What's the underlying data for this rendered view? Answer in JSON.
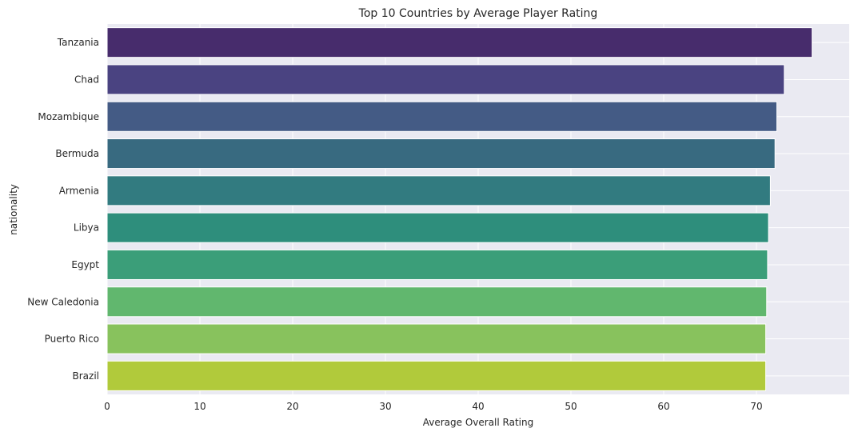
{
  "chart_data": {
    "type": "bar",
    "orientation": "horizontal",
    "title": "Top 10 Countries by Average Player Rating",
    "xlabel": "Average Overall Rating",
    "ylabel": "nationality",
    "xlim": [
      0,
      80
    ],
    "xticks": [
      0,
      10,
      20,
      30,
      40,
      50,
      60,
      70
    ],
    "grid": true,
    "categories": [
      "Tanzania",
      "Chad",
      "Mozambique",
      "Bermuda",
      "Armenia",
      "Libya",
      "Egypt",
      "New Caledonia",
      "Puerto Rico",
      "Brazil"
    ],
    "values": [
      76,
      73,
      72.2,
      72,
      71.5,
      71.3,
      71.2,
      71.1,
      71,
      71
    ],
    "colors": [
      "#472c6c",
      "#4a4381",
      "#445b85",
      "#386a80",
      "#327b80",
      "#2e8e7c",
      "#3b9e79",
      "#61b76e",
      "#88c25d",
      "#b1ca3b"
    ]
  }
}
